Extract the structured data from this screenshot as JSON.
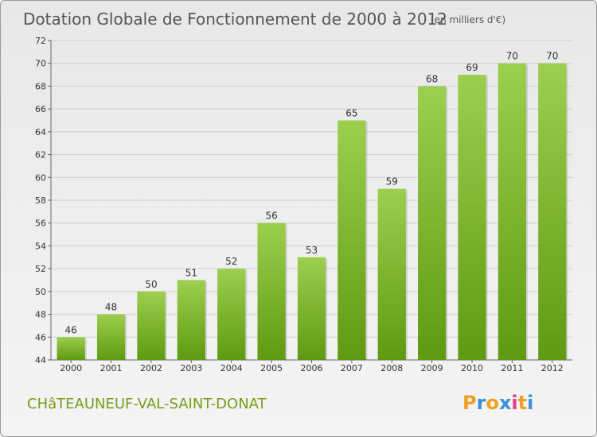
{
  "chart_data": {
    "type": "bar",
    "title": "Dotation Globale de Fonctionnement de 2000 à 2012",
    "subtitle": "(en milliers d'€)",
    "categories": [
      "2000",
      "2001",
      "2002",
      "2003",
      "2004",
      "2005",
      "2006",
      "2007",
      "2008",
      "2009",
      "2010",
      "2011",
      "2012"
    ],
    "values": [
      46,
      48,
      50,
      51,
      52,
      56,
      53,
      65,
      59,
      68,
      69,
      70,
      70
    ],
    "ylim": [
      44,
      72
    ],
    "yticks": [
      44,
      46,
      48,
      50,
      52,
      54,
      56,
      58,
      60,
      62,
      64,
      66,
      68,
      70,
      72
    ],
    "grid": true,
    "bar_color_top": "#9ccf4e",
    "bar_color_bottom": "#5f9a12"
  },
  "footer": {
    "commune": "CHâTEAUNEUF-VAL-SAINT-DONAT",
    "logo_letters": [
      "P",
      "r",
      "o",
      "x",
      "i",
      "t",
      "i"
    ],
    "logo_colors": [
      "#f0a020",
      "#3a8fd6",
      "#f0a020",
      "#3a8fd6",
      "#e83a8a",
      "#f0a020",
      "#3a8fd6"
    ]
  }
}
